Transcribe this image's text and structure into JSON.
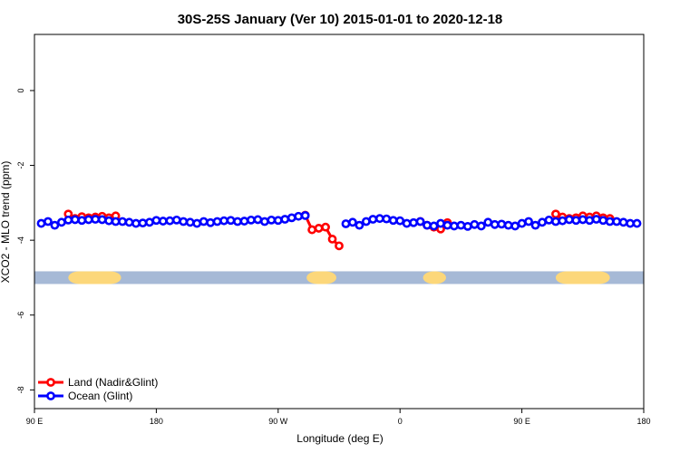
{
  "chart_data": {
    "type": "line",
    "title": "30S-25S January (Ver 10)   2015-01-01 to 2020-12-18",
    "x_label": "Longitude (deg E)",
    "y_label": "XCO2 - MLO trend (ppm)",
    "x": [
      95,
      100,
      105,
      110,
      115,
      120,
      125,
      130,
      135,
      140,
      145,
      150,
      155,
      160,
      165,
      170,
      175,
      180,
      185,
      190,
      195,
      200,
      205,
      210,
      215,
      220,
      225,
      230,
      235,
      240,
      245,
      250,
      255,
      260,
      265,
      270,
      275,
      280,
      285,
      290,
      295,
      300,
      305,
      310,
      315,
      320,
      325,
      330,
      335,
      340,
      345,
      350,
      355,
      360,
      365,
      370,
      375,
      380,
      385,
      390,
      395,
      400,
      405,
      410,
      415,
      420,
      425,
      430,
      435,
      440,
      445,
      450,
      455,
      460,
      465,
      470,
      475,
      480,
      485,
      490,
      495,
      500,
      505,
      510,
      515,
      520,
      525,
      530,
      535
    ],
    "series": [
      {
        "name": "Land (Nadir&Glint)",
        "color": "#ff0000",
        "values": [
          null,
          null,
          null,
          null,
          -3.3,
          -3.42,
          -3.37,
          -3.4,
          -3.38,
          -3.36,
          -3.4,
          -3.35,
          null,
          null,
          null,
          null,
          null,
          null,
          null,
          null,
          null,
          null,
          null,
          null,
          null,
          null,
          null,
          null,
          null,
          null,
          null,
          null,
          null,
          null,
          null,
          null,
          null,
          null,
          null,
          -3.33,
          -3.72,
          -3.68,
          -3.65,
          -3.97,
          -4.15,
          null,
          null,
          null,
          null,
          null,
          null,
          null,
          null,
          null,
          null,
          null,
          -3.5,
          -3.6,
          -3.65,
          -3.7,
          -3.53,
          null,
          null,
          null,
          null,
          null,
          null,
          null,
          null,
          null,
          null,
          null,
          null,
          null,
          null,
          null,
          -3.3,
          -3.38,
          -3.42,
          -3.4,
          -3.35,
          -3.38,
          -3.35,
          -3.4,
          -3.42,
          null,
          null,
          null,
          null
        ]
      },
      {
        "name": "Ocean (Glint)",
        "color": "#0000ff",
        "values": [
          -3.55,
          -3.5,
          -3.6,
          -3.52,
          -3.46,
          -3.45,
          -3.47,
          -3.45,
          -3.44,
          -3.45,
          -3.48,
          -3.5,
          -3.5,
          -3.52,
          -3.55,
          -3.54,
          -3.52,
          -3.47,
          -3.49,
          -3.48,
          -3.46,
          -3.5,
          -3.52,
          -3.55,
          -3.5,
          -3.53,
          -3.5,
          -3.48,
          -3.47,
          -3.5,
          -3.49,
          -3.46,
          -3.45,
          -3.5,
          -3.46,
          -3.47,
          -3.44,
          -3.4,
          -3.36,
          -3.34,
          null,
          null,
          null,
          null,
          null,
          -3.56,
          -3.52,
          -3.6,
          -3.5,
          -3.44,
          -3.42,
          -3.43,
          -3.47,
          -3.48,
          -3.55,
          -3.53,
          -3.5,
          -3.6,
          -3.62,
          -3.55,
          -3.6,
          -3.62,
          -3.6,
          -3.63,
          -3.58,
          -3.62,
          -3.52,
          -3.58,
          -3.57,
          -3.6,
          -3.62,
          -3.55,
          -3.5,
          -3.6,
          -3.52,
          -3.46,
          -3.5,
          -3.48,
          -3.45,
          -3.47,
          -3.45,
          -3.47,
          -3.44,
          -3.47,
          -3.5,
          -3.5,
          -3.52,
          -3.55,
          -3.55
        ]
      }
    ],
    "surface_band": {
      "y": -5,
      "ocean_color": "#a6b9d6",
      "land_color": "#fcd77a",
      "land": [
        [
          115,
          154
        ],
        [
          291,
          313
        ],
        [
          377,
          394
        ],
        [
          475,
          515
        ]
      ]
    },
    "xlim": [
      90,
      540
    ],
    "xticks": [
      {
        "value": 90,
        "label": "90 E"
      },
      180,
      {
        "value": 270,
        "label": "90 W"
      },
      {
        "value": 360,
        "label": "0"
      },
      {
        "value": 450,
        "label": "90 E"
      },
      {
        "value": 540,
        "label": "180"
      }
    ],
    "ylim": [
      -8.5,
      1.5
    ],
    "yticks": [
      0,
      -2,
      -4,
      -6,
      -8
    ],
    "legend": "bottom-left"
  }
}
